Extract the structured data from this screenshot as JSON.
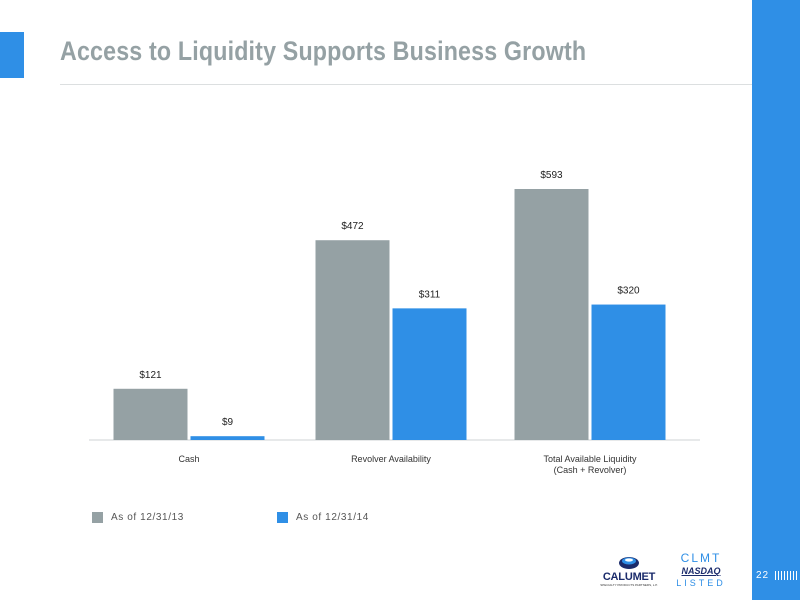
{
  "slide": {
    "title": "Access to Liquidity Supports Business Growth",
    "page_number": "22"
  },
  "colors": {
    "accent_blue": "#2f8fe6",
    "series_gray": "#95a1a4",
    "title_gray": "#95a1a4"
  },
  "chart_data": {
    "type": "bar",
    "categories": [
      "Cash",
      "Revolver Availability",
      "Total Available Liquidity\n(Cash + Revolver)"
    ],
    "series": [
      {
        "name": "As of 12/31/13",
        "values": [
          121,
          472,
          593
        ],
        "labels": [
          "$121",
          "$472",
          "$593"
        ],
        "color": "#95a1a4"
      },
      {
        "name": "As of 12/31/14",
        "values": [
          9,
          311,
          320
        ],
        "labels": [
          "$9",
          "$311",
          "$320"
        ],
        "color": "#2f8fe6"
      }
    ],
    "ylim": [
      0,
      600
    ],
    "grid": false,
    "legend_position": "bottom-left"
  },
  "logos": {
    "company": "CALUMET",
    "company_sub": "SPECIALTY PRODUCTS PARTNERS, L.P.",
    "ticker": "CLMT",
    "exchange": "NASDAQ",
    "listed": "LISTED"
  }
}
